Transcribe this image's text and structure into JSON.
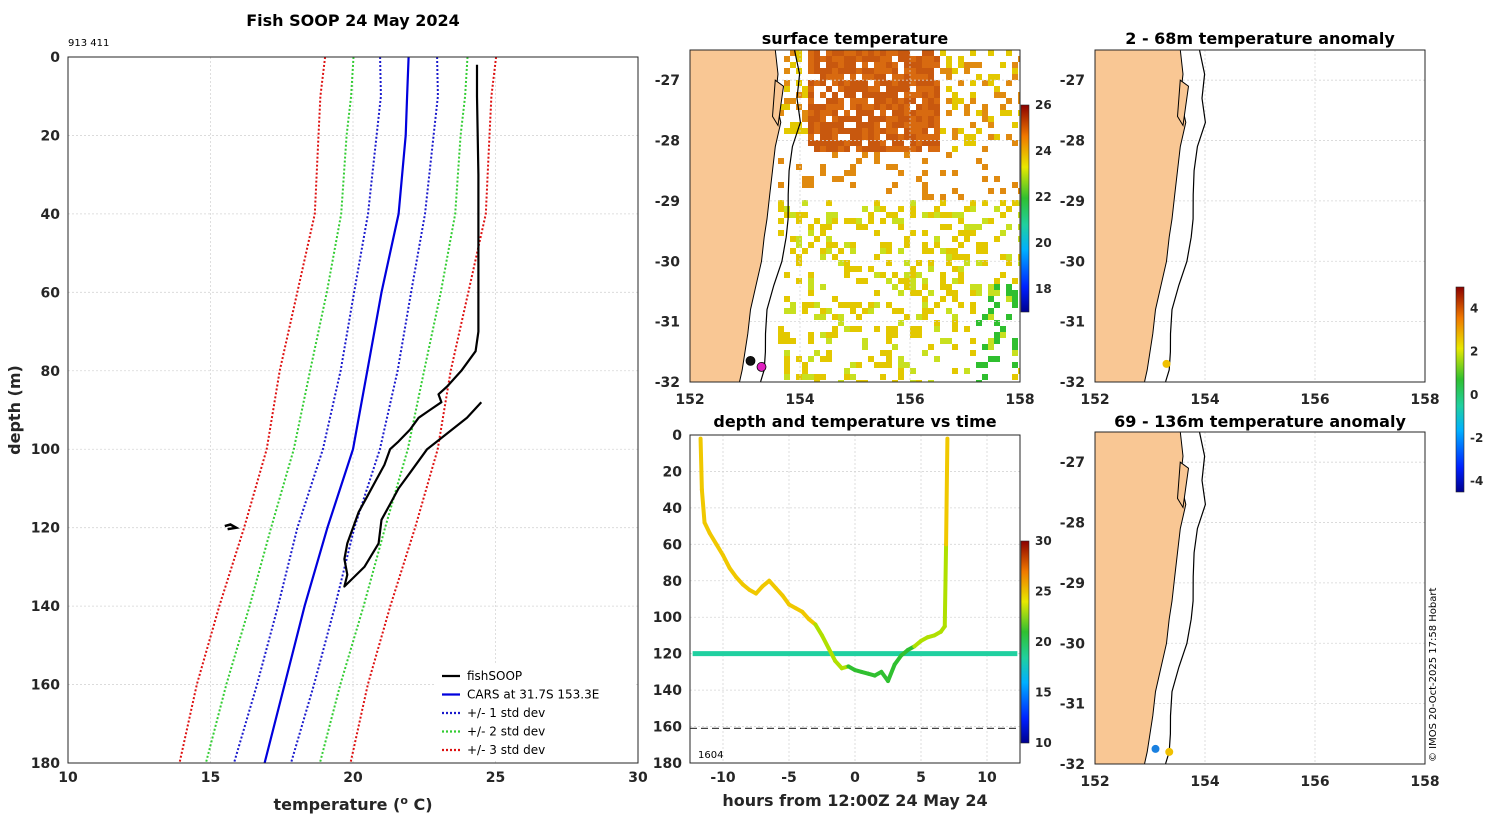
{
  "colors": {
    "land": "#f9c794",
    "fishsoop": "#000000",
    "cars": "#0000dd",
    "std1": "#1a1acc",
    "std2": "#33cc33",
    "std3": "#dd1111",
    "sst_hot": "#c8580e",
    "sst_mid": "#e3c800",
    "sst_cool": "#2fbf2f"
  },
  "chart_data": [
    {
      "id": "profile",
      "type": "line",
      "title": "Fish SOOP 24 May 2024",
      "id_label": "913 411",
      "xlabel": "temperature (",
      "xlabel_sup": "o",
      "xlabel_end": " C)",
      "ylabel": "depth (m)",
      "xlim": [
        10,
        30
      ],
      "ylim": [
        0,
        180
      ],
      "xticks": [
        "10",
        "15",
        "20",
        "25",
        "30"
      ],
      "yticks": [
        "0",
        "20",
        "40",
        "60",
        "80",
        "100",
        "120",
        "140",
        "160",
        "180"
      ],
      "cars_depth": [
        0,
        10,
        20,
        40,
        60,
        80,
        100,
        120,
        140,
        160,
        180
      ],
      "cars_temp": [
        21.95,
        21.9,
        21.85,
        21.6,
        21.0,
        20.5,
        20.0,
        19.1,
        18.3,
        17.6,
        16.9
      ],
      "std_spread": [
        1.0,
        2.0,
        3.0
      ],
      "fishsoop": {
        "depth": [
          2,
          10,
          30,
          50,
          70,
          75,
          80,
          84,
          86,
          88,
          90,
          92,
          95,
          98,
          100,
          104,
          108,
          112,
          116,
          120,
          124,
          128,
          132,
          135,
          130,
          124,
          118,
          114,
          110,
          106,
          100,
          96,
          92,
          88
        ],
        "temp": [
          24.35,
          24.35,
          24.4,
          24.4,
          24.4,
          24.3,
          23.8,
          23.3,
          23.0,
          23.1,
          22.7,
          22.3,
          22.0,
          21.6,
          21.3,
          21.1,
          20.8,
          20.5,
          20.2,
          20.0,
          19.8,
          19.7,
          19.8,
          19.7,
          20.4,
          20.9,
          21.0,
          21.3,
          21.6,
          22.0,
          22.6,
          23.3,
          24.0,
          24.5
        ]
      },
      "legend": [
        {
          "label": "fishSOOP",
          "style": "solid",
          "color": "#000000"
        },
        {
          "label": "CARS at 31.7S 153.3E",
          "style": "solid",
          "color": "#0000dd"
        },
        {
          "label": "+/- 1 std dev",
          "style": "dotted",
          "color": "#1a1acc"
        },
        {
          "label": "+/- 2 std dev",
          "style": "dotted",
          "color": "#33cc33"
        },
        {
          "label": "+/- 3 std dev",
          "style": "dotted",
          "color": "#dd1111"
        }
      ]
    },
    {
      "id": "sst_map",
      "type": "heatmap",
      "title": "surface temperature",
      "xlim": [
        152,
        158
      ],
      "ylim": [
        -32,
        -26.5
      ],
      "xticks": [
        "152",
        "154",
        "156",
        "158"
      ],
      "yticks": [
        "-27",
        "-28",
        "-29",
        "-30",
        "-31",
        "-32"
      ],
      "colorbar_ticks": [
        "26",
        "24",
        "22",
        "20",
        "18"
      ],
      "colorbar_range": [
        17,
        26
      ],
      "stations": [
        {
          "name": "observation",
          "lon": 153.1,
          "lat": -31.65,
          "color": "#111111"
        },
        {
          "name": "cars-point",
          "lon": 153.3,
          "lat": -31.75,
          "color": "#e020c0"
        }
      ]
    },
    {
      "id": "depth_time",
      "type": "scatter",
      "title": "depth and temperature vs time",
      "xlabel": "hours from 12:00Z 24 May 24",
      "xlim": [
        -12.5,
        12.5
      ],
      "ylim": [
        0,
        180
      ],
      "xticks": [
        "-10",
        "-5",
        "0",
        "5",
        "10"
      ],
      "yticks": [
        "0",
        "20",
        "40",
        "60",
        "80",
        "100",
        "120",
        "140",
        "160",
        "180"
      ],
      "colorbar_ticks": [
        "30",
        "25",
        "20",
        "15",
        "10"
      ],
      "colorbar_range": [
        10,
        30
      ],
      "bottom_depth": 161,
      "bottom_label": "1604",
      "track": {
        "hours": [
          -11.7,
          -11.6,
          -11.4,
          -11.0,
          -10.5,
          -10.0,
          -9.5,
          -9.0,
          -8.5,
          -8.0,
          -7.5,
          -7.0,
          -6.5,
          -6.0,
          -5.5,
          -5.0,
          -4.5,
          -4.0,
          -3.5,
          -3.0,
          -2.5,
          -2.0,
          -1.5,
          -1.0,
          -0.5,
          0.0,
          0.5,
          1.0,
          1.5,
          2.0,
          2.5,
          3.0,
          3.5,
          4.0,
          4.5,
          5.0,
          5.5,
          6.0,
          6.5,
          6.8,
          6.9,
          7.0
        ],
        "depth": [
          2,
          30,
          48,
          54,
          60,
          66,
          73,
          78,
          82,
          85,
          87,
          83,
          80,
          84,
          88,
          93,
          95,
          97,
          101,
          104,
          110,
          117,
          124,
          128,
          127,
          129,
          130,
          131,
          132,
          130,
          135,
          126,
          121,
          118,
          116,
          113,
          111,
          110,
          108,
          105,
          60,
          2
        ],
        "temp": [
          24,
          24,
          24,
          24,
          24,
          24,
          24,
          24,
          24,
          24,
          24,
          24,
          24,
          24,
          24,
          24,
          23.5,
          23.5,
          23,
          22.5,
          22,
          21.5,
          21,
          21,
          20.5,
          20.5,
          20.5,
          20.5,
          20.5,
          20.5,
          20,
          20,
          20.5,
          20.5,
          21,
          21,
          21.5,
          21.5,
          22,
          22,
          23,
          24
        ]
      },
      "thermocline": {
        "depth": 120,
        "temp": 17
      }
    },
    {
      "id": "anom_upper",
      "type": "scatter",
      "title": "2 - 68m temperature anomaly",
      "xlim": [
        152,
        158
      ],
      "ylim": [
        -32,
        -26.5
      ],
      "xticks": [
        "152",
        "154",
        "156",
        "158"
      ],
      "yticks": [
        "-27",
        "-28",
        "-29",
        "-30",
        "-31",
        "-32"
      ],
      "points": [
        {
          "lon": 153.3,
          "lat": -31.7,
          "anomaly": 1.5
        }
      ]
    },
    {
      "id": "anom_lower",
      "type": "scatter",
      "title": "69 - 136m temperature anomaly",
      "xlim": [
        152,
        158
      ],
      "ylim": [
        -32,
        -26.5
      ],
      "xticks": [
        "152",
        "154",
        "156",
        "158"
      ],
      "yticks": [
        "-27",
        "-28",
        "-29",
        "-30",
        "-31",
        "-32"
      ],
      "points": [
        {
          "lon": 153.1,
          "lat": -31.75,
          "anomaly": -1.5
        },
        {
          "lon": 153.35,
          "lat": -31.8,
          "anomaly": 1.5
        }
      ],
      "colorbar_ticks": [
        "4",
        "2",
        "0",
        "-2",
        "-4"
      ],
      "colorbar_range": [
        -4.5,
        5
      ]
    }
  ],
  "credit": "© IMOS 20-Oct-2025 17:58 Hobart"
}
